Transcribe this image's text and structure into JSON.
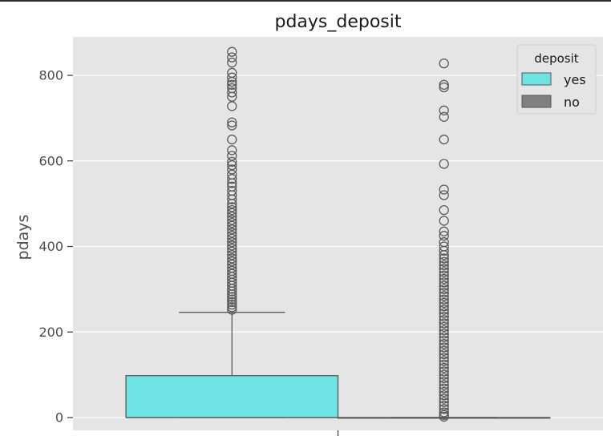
{
  "chart_data": {
    "type": "box",
    "title": "pdays_deposit",
    "xlabel": "",
    "ylabel": "pdays",
    "ylim": [
      -30,
      890
    ],
    "yticks": [
      0,
      200,
      400,
      600,
      800
    ],
    "grid": true,
    "legend": {
      "title": "deposit",
      "placement": "top-right"
    },
    "series": [
      {
        "name": "yes",
        "color": "#6ee3e3",
        "min": 0,
        "q1": 0,
        "median": 0,
        "q3": 98,
        "whisker_high": 246,
        "outliers": [
          855,
          842,
          830,
          806,
          795,
          785,
          778,
          770,
          760,
          750,
          728,
          690,
          683,
          650,
          625,
          612,
          598,
          590,
          580,
          568,
          558,
          548,
          540,
          530,
          520,
          510,
          500,
          492,
          485,
          478,
          470,
          462,
          455,
          448,
          440,
          432,
          425,
          418,
          410,
          402,
          395,
          388,
          380,
          372,
          365,
          358,
          350,
          343,
          336,
          329,
          322,
          315,
          308,
          301,
          295,
          288,
          282,
          276,
          270,
          264,
          258,
          252
        ]
      },
      {
        "name": "no",
        "color": "#808080",
        "min": 0,
        "q1": 0,
        "median": 0,
        "q3": 0,
        "whisker_high": 0,
        "outliers": [
          828,
          778,
          772,
          718,
          703,
          650,
          593,
          533,
          520,
          485,
          460,
          435,
          425,
          410,
          400,
          390,
          380,
          372,
          364,
          356,
          348,
          340,
          332,
          324,
          316,
          308,
          300,
          292,
          284,
          276,
          268,
          260,
          252,
          244,
          236,
          228,
          220,
          212,
          204,
          196,
          188,
          180,
          172,
          164,
          156,
          148,
          140,
          132,
          124,
          116,
          108,
          100,
          92,
          84,
          76,
          68,
          60,
          52,
          44,
          36,
          28,
          20,
          12,
          6,
          2
        ]
      }
    ]
  }
}
